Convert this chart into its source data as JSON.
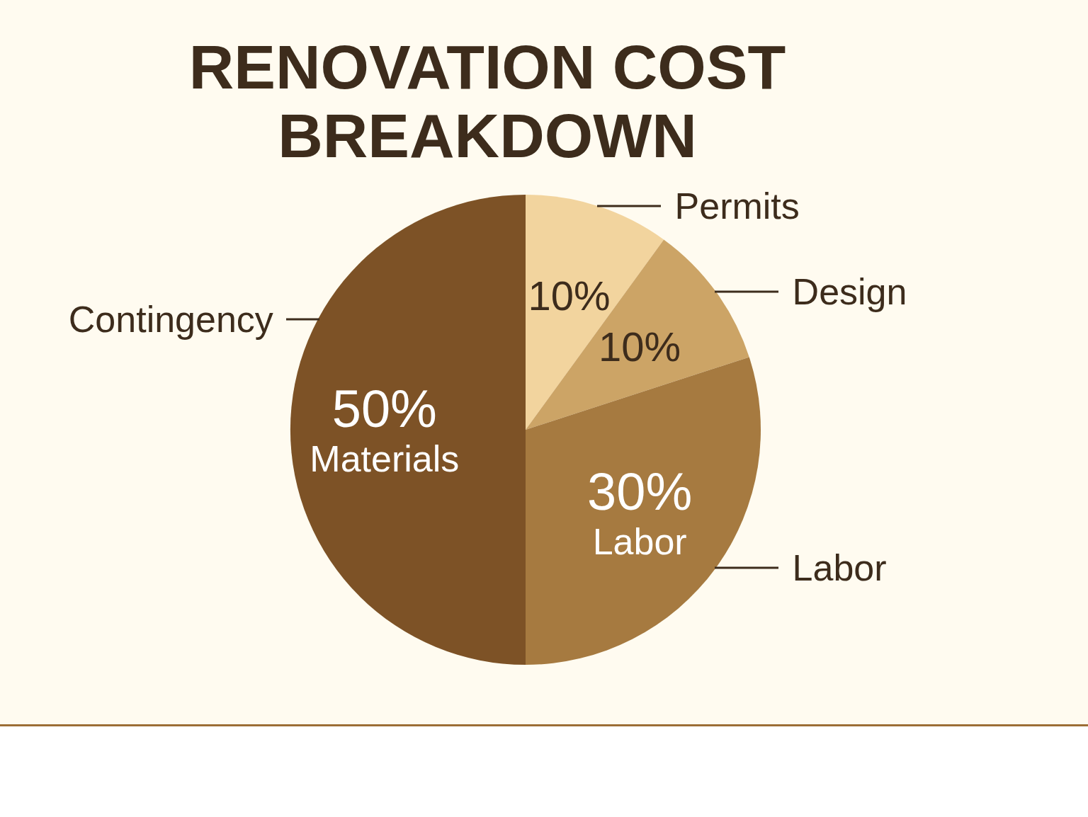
{
  "chart_data": {
    "type": "pie",
    "title": "RENOVATION COST BREAKDOWN",
    "categories": [
      "Permits",
      "Design",
      "Labor",
      "Materials"
    ],
    "values": [
      10,
      10,
      30,
      50
    ],
    "colors": [
      "#f2d49e",
      "#cca466",
      "#a67a40",
      "#7d5226"
    ],
    "value_labels": [
      "10%",
      "10%",
      "30%",
      "50%"
    ],
    "annotations": [
      "Contingency"
    ]
  }
}
